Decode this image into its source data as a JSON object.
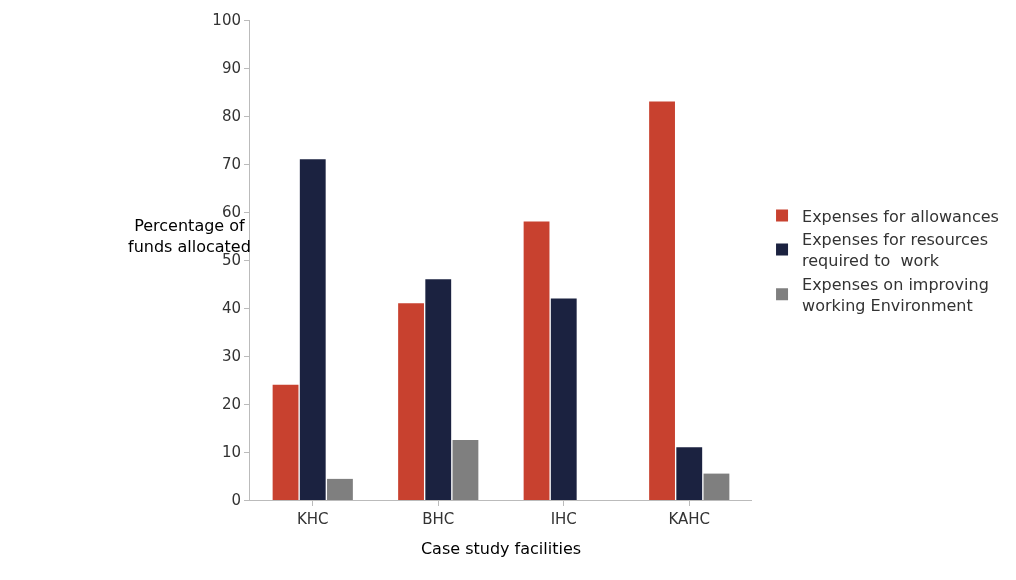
{
  "chart_data": {
    "type": "bar",
    "xlabel": "Case study facilities",
    "ylabel": "Percentage of\nfunds allocated",
    "categories": [
      "KHC",
      "BHC",
      "IHC",
      "KAHC"
    ],
    "series": [
      {
        "name": "Expenses for allowances",
        "color": "#c8412f",
        "values": [
          24,
          41,
          58,
          83
        ]
      },
      {
        "name": "Expenses for resources\nrequired to  work",
        "color": "#1b2240",
        "values": [
          71,
          46,
          42,
          11
        ]
      },
      {
        "name": "Expenses on improving\nworking Environment",
        "color": "#7f7f7f",
        "values": [
          4.4,
          12.5,
          0,
          5.5
        ]
      }
    ],
    "ylim": [
      0,
      100
    ],
    "yticks": [
      0,
      10,
      20,
      30,
      40,
      50,
      60,
      70,
      80,
      90,
      100
    ],
    "legend": "right"
  }
}
